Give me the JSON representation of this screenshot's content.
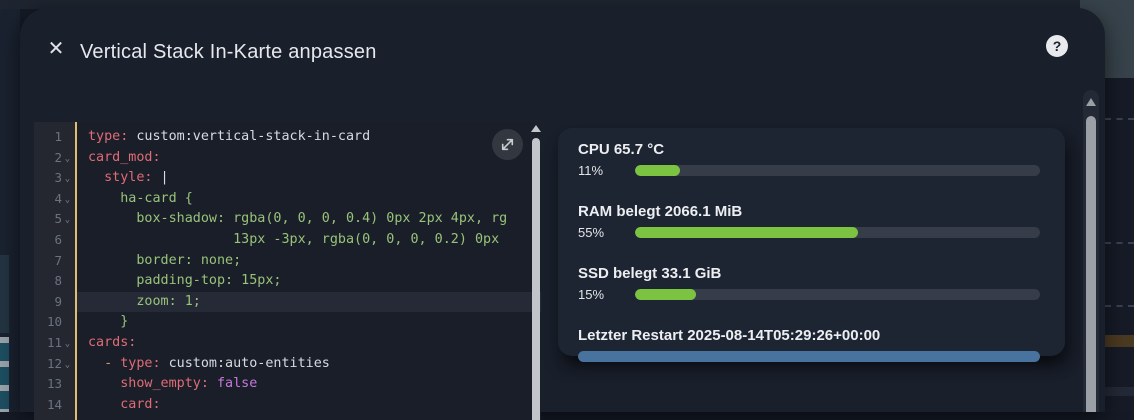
{
  "colors": {
    "green_bar": "#7cc342",
    "blue_bar": "#48739e",
    "bar_track": "#373d48",
    "accent_divider": "#e0bd72",
    "dialog_bg": "#191f2b",
    "card_bg": "#1e2532",
    "editor_bg": "#1a1e29"
  },
  "dialog": {
    "title": "Vertical Stack In-Karte anpassen",
    "close_icon": "✕",
    "help_icon": "?"
  },
  "editor": {
    "lines": [
      {
        "n": "1",
        "fold": false,
        "active": false,
        "tokens": [
          [
            "key",
            "type:"
          ],
          [
            "plain",
            " custom:vertical-stack-in-card"
          ]
        ]
      },
      {
        "n": "2",
        "fold": true,
        "active": false,
        "tokens": [
          [
            "key",
            "card_mod:"
          ]
        ]
      },
      {
        "n": "3",
        "fold": true,
        "active": false,
        "tokens": [
          [
            "plain",
            "  "
          ],
          [
            "key",
            "style:"
          ],
          [
            "plain",
            " |"
          ]
        ]
      },
      {
        "n": "4",
        "fold": true,
        "active": false,
        "tokens": [
          [
            "str",
            "    ha-card {"
          ]
        ]
      },
      {
        "n": "5",
        "fold": true,
        "active": false,
        "tokens": [
          [
            "str",
            "      box-shadow: rgba(0, 0, 0, 0.4) 0px 2px 4px, rg"
          ]
        ]
      },
      {
        "n": "6",
        "fold": false,
        "active": false,
        "tokens": [
          [
            "str",
            "                  13px -3px, rgba(0, 0, 0, 0.2) 0px"
          ]
        ]
      },
      {
        "n": "7",
        "fold": false,
        "active": false,
        "tokens": [
          [
            "str",
            "      border: none;"
          ]
        ]
      },
      {
        "n": "8",
        "fold": false,
        "active": false,
        "tokens": [
          [
            "str",
            "      padding-top: 15px;"
          ]
        ]
      },
      {
        "n": "9",
        "fold": false,
        "active": true,
        "tokens": [
          [
            "str",
            "      zoom: 1;"
          ]
        ]
      },
      {
        "n": "10",
        "fold": false,
        "active": false,
        "tokens": [
          [
            "str",
            "    }"
          ]
        ]
      },
      {
        "n": "11",
        "fold": true,
        "active": false,
        "tokens": [
          [
            "key",
            "cards:"
          ]
        ]
      },
      {
        "n": "12",
        "fold": true,
        "active": false,
        "tokens": [
          [
            "plain",
            "  "
          ],
          [
            "dash",
            "- "
          ],
          [
            "key",
            "type:"
          ],
          [
            "plain",
            " custom:auto-entities"
          ]
        ]
      },
      {
        "n": "13",
        "fold": false,
        "active": false,
        "tokens": [
          [
            "plain",
            "    "
          ],
          [
            "key",
            "show_empty:"
          ],
          [
            "num",
            " false"
          ]
        ]
      },
      {
        "n": "14",
        "fold": false,
        "active": false,
        "tokens": [
          [
            "plain",
            "    "
          ],
          [
            "key",
            "card:"
          ]
        ]
      }
    ],
    "fold_icon": "⌄"
  },
  "preview": {
    "rows": [
      {
        "label": "CPU 65.7 °C",
        "percent_label": "11%",
        "percent": 11,
        "color": "green",
        "full_width": false
      },
      {
        "label": "RAM belegt 2066.1 MiB",
        "percent_label": "55%",
        "percent": 55,
        "color": "green",
        "full_width": false
      },
      {
        "label": "SSD belegt 33.1 GiB",
        "percent_label": "15%",
        "percent": 15,
        "color": "green",
        "full_width": false
      },
      {
        "label": "Letzter Restart 2025-08-14T05:29:26+00:00",
        "percent_label": "",
        "percent": 100,
        "color": "blue",
        "full_width": true
      }
    ]
  }
}
